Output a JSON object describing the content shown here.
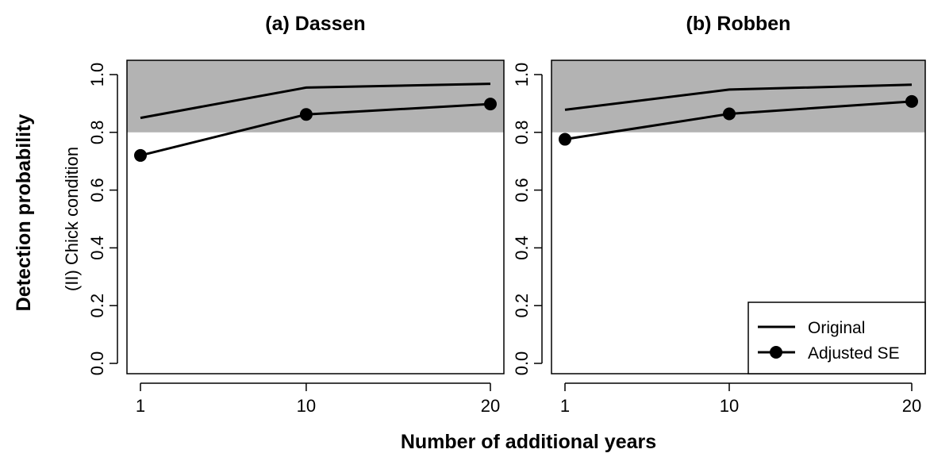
{
  "figure": {
    "outer_ylabel": "Detection probability",
    "outer_xlabel": "Number of additional years",
    "inner_ylabel": "(II) Chick condition"
  },
  "legend": {
    "items": [
      {
        "label": "Original",
        "marker": "line"
      },
      {
        "label": "Adjusted SE",
        "marker": "line-dot"
      }
    ],
    "placement": "bottom-right of panel (b)"
  },
  "chart_data": [
    {
      "type": "line",
      "title": "(a) Dassen",
      "x": [
        1,
        10,
        20
      ],
      "x_tick_labels": [
        "1",
        "10",
        "20"
      ],
      "y_tick_labels": [
        "0.0",
        "0.2",
        "0.4",
        "0.6",
        "0.8",
        "1.0"
      ],
      "ylim": [
        0,
        1
      ],
      "xlim": [
        1,
        20
      ],
      "shaded_band": [
        0.8,
        1.0
      ],
      "series": [
        {
          "name": "Original",
          "values": [
            0.85,
            0.955,
            0.968
          ],
          "markers": false
        },
        {
          "name": "Adjusted SE",
          "values": [
            0.72,
            0.862,
            0.898
          ],
          "markers": true
        }
      ],
      "grid": false
    },
    {
      "type": "line",
      "title": "(b) Robben",
      "x": [
        1,
        10,
        20
      ],
      "x_tick_labels": [
        "1",
        "10",
        "20"
      ],
      "y_tick_labels": [
        "0.0",
        "0.2",
        "0.4",
        "0.6",
        "0.8",
        "1.0"
      ],
      "ylim": [
        0,
        1
      ],
      "xlim": [
        1,
        20
      ],
      "shaded_band": [
        0.8,
        1.0
      ],
      "series": [
        {
          "name": "Original",
          "values": [
            0.878,
            0.948,
            0.965
          ],
          "markers": false
        },
        {
          "name": "Adjusted SE",
          "values": [
            0.776,
            0.864,
            0.907
          ],
          "markers": true
        }
      ],
      "grid": false
    }
  ],
  "colors": {
    "band": "#b3b3b3",
    "line": "#000000",
    "background": "#ffffff"
  }
}
